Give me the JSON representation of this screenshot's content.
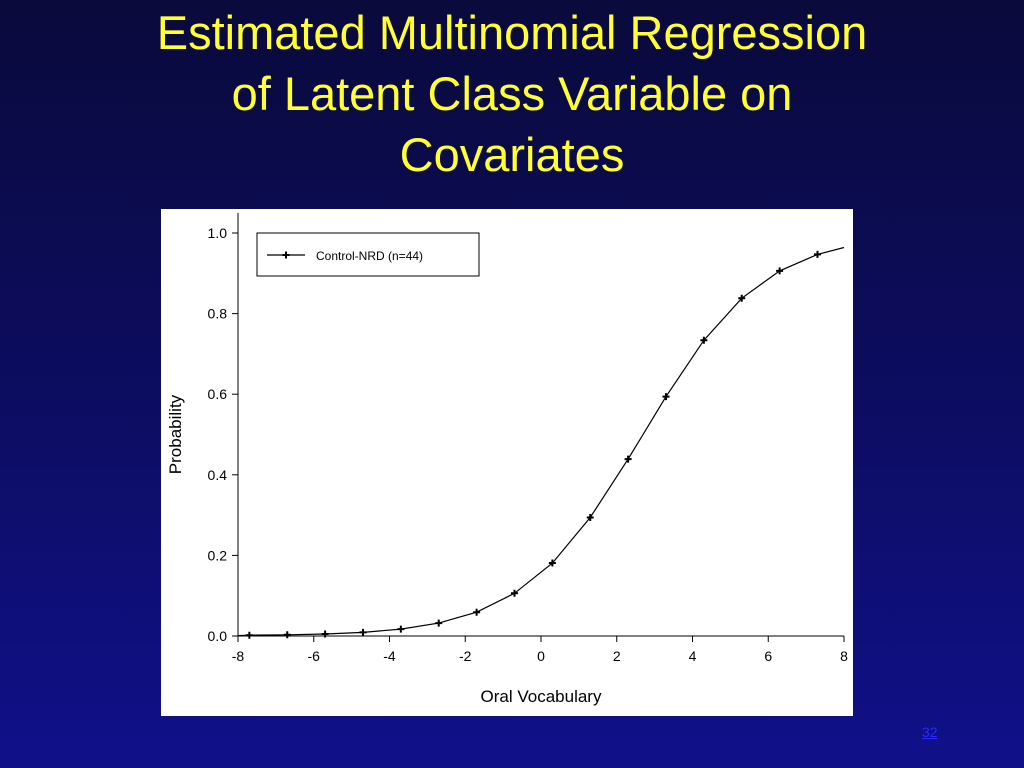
{
  "slide": {
    "title_lines": [
      "Estimated Multinomial Regression",
      "of Latent Class Variable on",
      "Covariates"
    ],
    "number": "32",
    "title_color": "#ffff33"
  },
  "chart_data": {
    "type": "line",
    "title": "",
    "xlabel": "Oral Vocabulary",
    "ylabel": "Probability",
    "xlim": [
      -8,
      8
    ],
    "ylim": [
      0,
      1
    ],
    "x_ticks": [
      "-8",
      "-6",
      "-4",
      "-2",
      "0",
      "2",
      "4",
      "6",
      "8"
    ],
    "y_ticks": [
      "0.0",
      "0.2",
      "0.4",
      "0.6",
      "0.8",
      "1.0"
    ],
    "grid": false,
    "legend_position": "top-left",
    "series": [
      {
        "name": "Control-NRD (n=44)",
        "marker": "plus",
        "color": "#000000",
        "x": [
          -8,
          -7.7,
          -6.7,
          -5.7,
          -4.7,
          -3.7,
          -2.7,
          -1.7,
          -0.7,
          0.3,
          1.3,
          2.3,
          3.3,
          4.3,
          5.3,
          6.3,
          7.3,
          8
        ],
        "y": [
          0.001,
          0.002,
          0.003,
          0.005,
          0.009,
          0.017,
          0.032,
          0.059,
          0.106,
          0.181,
          0.294,
          0.439,
          0.594,
          0.734,
          0.838,
          0.906,
          0.947,
          0.964
        ],
        "marker_mask": [
          false,
          true,
          true,
          true,
          true,
          true,
          true,
          true,
          true,
          true,
          true,
          true,
          true,
          true,
          true,
          true,
          true,
          false
        ]
      }
    ]
  }
}
